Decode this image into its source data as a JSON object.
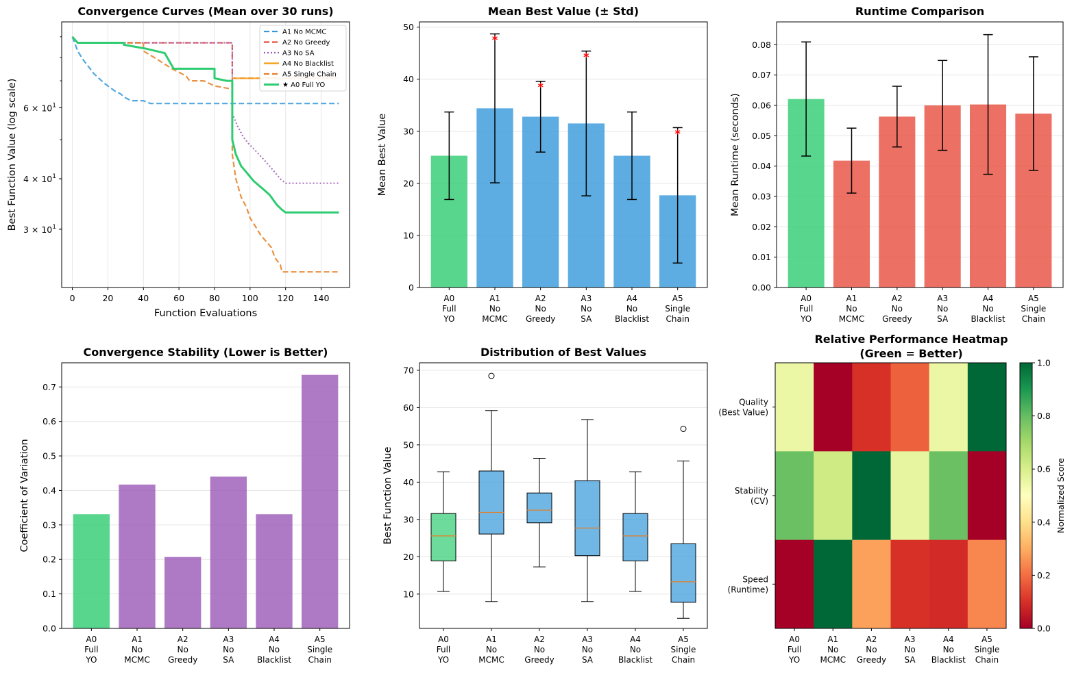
{
  "categories_x": [
    "A0\nFull\nYO",
    "A1\nNo\nMCMC",
    "A2\nNo\nGreedy",
    "A3\nNo\nSA",
    "A4\nNo\nBlacklist",
    "A5\nSingle\nChain"
  ],
  "colors": {
    "green": "#2ecc71",
    "blue": "#3498db",
    "red": "#e74c3c",
    "purple": "#9b59b6",
    "orange": "#f39c12",
    "darkorange": "#e67e22",
    "redline": "#e74c3c"
  },
  "chart_data": [
    {
      "id": "convergence",
      "type": "line",
      "title": "Convergence Curves (Mean over 30 runs)",
      "xlabel": "Function Evaluations",
      "ylabel": "Best Function Value (log scale)",
      "xlim": [
        -6,
        156
      ],
      "ylim_log": [
        21.5,
        98
      ],
      "xticks": [
        0,
        20,
        40,
        60,
        80,
        100,
        120,
        140
      ],
      "yticks": [
        {
          "value": 60,
          "base": "6 × 10",
          "exp": "1"
        },
        {
          "value": 40,
          "base": "4 × 10",
          "exp": "1"
        },
        {
          "value": 30,
          "base": "3 × 10",
          "exp": "1"
        }
      ],
      "legend": "top-right",
      "series": [
        {
          "name": "A1 No MCMC",
          "color": "#3498db",
          "dash": "dashed",
          "points": [
            [
              0,
              90
            ],
            [
              3,
              83
            ],
            [
              6,
              79
            ],
            [
              9,
              76
            ],
            [
              12,
              73
            ],
            [
              15,
              71
            ],
            [
              18,
              69
            ],
            [
              21,
              67.5
            ],
            [
              24,
              66
            ],
            [
              27,
              65
            ],
            [
              30,
              63.5
            ],
            [
              33,
              62.5
            ],
            [
              36,
              62.5
            ],
            [
              40,
              62.5
            ],
            [
              44,
              61.5
            ],
            [
              150,
              61.5
            ]
          ]
        },
        {
          "name": "A2 No Greedy",
          "color": "#e74c3c",
          "dash": "dashed",
          "points": [
            [
              0,
              90
            ],
            [
              3,
              87
            ],
            [
              29,
              87
            ],
            [
              29,
              87
            ],
            [
              90,
              87
            ],
            [
              90,
              71
            ],
            [
              150,
              71
            ]
          ]
        },
        {
          "name": "A3 No SA",
          "color": "#9b59b6",
          "dash": "dotted",
          "points": [
            [
              0,
              90
            ],
            [
              3,
              87
            ],
            [
              90,
              87
            ],
            [
              90,
              58
            ],
            [
              93,
              54
            ],
            [
              96,
              51
            ],
            [
              99,
              49
            ],
            [
              102,
              47.5
            ],
            [
              105,
              46
            ],
            [
              108,
              44.5
            ],
            [
              111,
              43
            ],
            [
              114,
              41.5
            ],
            [
              117,
              40
            ],
            [
              120,
              39
            ],
            [
              150,
              39
            ]
          ]
        },
        {
          "name": "A4 No Blacklist",
          "color": "#f39c12",
          "dash": "solid",
          "points": [
            [
              90,
              71
            ],
            [
              150,
              71
            ]
          ]
        },
        {
          "name": "A5 Single Chain",
          "color": "#e67e22",
          "dash": "dashed",
          "points": [
            [
              0,
              90
            ],
            [
              3,
              87
            ],
            [
              40,
              87
            ],
            [
              40,
              83
            ],
            [
              44,
              81
            ],
            [
              48,
              79
            ],
            [
              52,
              77
            ],
            [
              56,
              75
            ],
            [
              60,
              73.5
            ],
            [
              64,
              72
            ],
            [
              66,
              70
            ],
            [
              74,
              70
            ],
            [
              80,
              68
            ],
            [
              88,
              67
            ],
            [
              90,
              67
            ],
            [
              90,
              46
            ],
            [
              92,
              40
            ],
            [
              95,
              36
            ],
            [
              98,
              34
            ],
            [
              100,
              32
            ],
            [
              103,
              30.5
            ],
            [
              106,
              29
            ],
            [
              109,
              28
            ],
            [
              112,
              27
            ],
            [
              114,
              25.5
            ],
            [
              117,
              24.5
            ],
            [
              118,
              23.5
            ],
            [
              150,
              23.5
            ]
          ]
        },
        {
          "name": "★ A0 Full YO",
          "color": "#2ecc71",
          "dash": "solid-bold",
          "points": [
            [
              0,
              90
            ],
            [
              3,
              87
            ],
            [
              29,
              87
            ],
            [
              29,
              86
            ],
            [
              42,
              84
            ],
            [
              52,
              82
            ],
            [
              57,
              75
            ],
            [
              80,
              75
            ],
            [
              80,
              71
            ],
            [
              87,
              70
            ],
            [
              90,
              70
            ],
            [
              90,
              50
            ],
            [
              92,
              46
            ],
            [
              95,
              43
            ],
            [
              98,
              41.5
            ],
            [
              100,
              40.5
            ],
            [
              102,
              39.5
            ],
            [
              105,
              38.5
            ],
            [
              108,
              37.5
            ],
            [
              111,
              36.5
            ],
            [
              113,
              35.5
            ],
            [
              115,
              34.5
            ],
            [
              118,
              33.5
            ],
            [
              120,
              33
            ],
            [
              150,
              33
            ]
          ]
        }
      ]
    },
    {
      "id": "meanbest",
      "type": "bar",
      "title": "Mean Best Value (± Std)",
      "ylabel": "Mean Best Value",
      "ylim": [
        0,
        51
      ],
      "yticks": [
        0,
        10,
        20,
        30,
        40,
        50
      ],
      "values": [
        25.3,
        34.4,
        32.8,
        31.5,
        25.3,
        17.7
      ],
      "std": [
        8.4,
        14.3,
        6.8,
        13.9,
        8.4,
        13.0
      ],
      "significant": [
        false,
        true,
        true,
        true,
        false,
        true
      ],
      "sig_marker": "*",
      "colors": [
        "#2ecc71",
        "#3498db",
        "#3498db",
        "#3498db",
        "#3498db",
        "#3498db"
      ]
    },
    {
      "id": "runtime",
      "type": "bar",
      "title": "Runtime Comparison",
      "ylabel": "Mean Runtime (seconds)",
      "ylim": [
        0,
        0.0875
      ],
      "yticks": [
        0.0,
        0.01,
        0.02,
        0.03,
        0.04,
        0.05,
        0.06,
        0.07,
        0.08
      ],
      "values": [
        0.0621,
        0.0418,
        0.0563,
        0.06,
        0.0603,
        0.0573
      ],
      "std": [
        0.0188,
        0.0107,
        0.01,
        0.0148,
        0.023,
        0.0187
      ],
      "colors": [
        "#2ecc71",
        "#e74c3c",
        "#e74c3c",
        "#e74c3c",
        "#e74c3c",
        "#e74c3c"
      ]
    },
    {
      "id": "stability",
      "type": "bar",
      "title": "Convergence Stability (Lower is Better)",
      "ylabel": "Coefficient of Variation",
      "ylim": [
        0,
        0.77
      ],
      "yticks": [
        0.0,
        0.1,
        0.2,
        0.3,
        0.4,
        0.5,
        0.6,
        0.7
      ],
      "values": [
        0.331,
        0.417,
        0.207,
        0.44,
        0.331,
        0.735
      ],
      "colors": [
        "#2ecc71",
        "#9b59b6",
        "#9b59b6",
        "#9b59b6",
        "#9b59b6",
        "#9b59b6"
      ]
    },
    {
      "id": "distribution",
      "type": "box",
      "title": "Distribution of Best Values",
      "ylabel": "Best Function Value",
      "ylim": [
        0.8,
        72
      ],
      "yticks": [
        10,
        20,
        30,
        40,
        50,
        60,
        70
      ],
      "boxes": [
        {
          "q1": 18.9,
          "median": 25.6,
          "q3": 31.6,
          "low": 10.7,
          "high": 42.8,
          "outliers": [],
          "color": "#2ecc71"
        },
        {
          "q1": 26.1,
          "median": 31.9,
          "q3": 43.0,
          "low": 8.0,
          "high": 59.2,
          "outliers": [
            68.5
          ],
          "color": "#3498db"
        },
        {
          "q1": 29.1,
          "median": 32.5,
          "q3": 37.1,
          "low": 17.3,
          "high": 46.4,
          "outliers": [],
          "color": "#3498db"
        },
        {
          "q1": 20.3,
          "median": 27.7,
          "q3": 40.4,
          "low": 8.0,
          "high": 56.8,
          "outliers": [],
          "color": "#3498db"
        },
        {
          "q1": 18.9,
          "median": 25.6,
          "q3": 31.6,
          "low": 10.7,
          "high": 42.8,
          "outliers": [],
          "color": "#3498db"
        },
        {
          "q1": 7.8,
          "median": 13.3,
          "q3": 23.5,
          "low": 3.5,
          "high": 45.7,
          "outliers": [
            54.3
          ],
          "color": "#3498db"
        }
      ]
    },
    {
      "id": "heatmap",
      "type": "heatmap",
      "title_lines": [
        "Relative Performance Heatmap",
        "(Green = Better)"
      ],
      "rows": [
        "Quality\n(Best Value)",
        "Stability\n(CV)",
        "Speed\n(Runtime)"
      ],
      "values": [
        [
          0.55,
          0.0,
          0.1,
          0.18,
          0.55,
          1.0
        ],
        [
          0.79,
          0.62,
          1.0,
          0.56,
          0.79,
          0.0
        ],
        [
          0.0,
          1.0,
          0.28,
          0.1,
          0.09,
          0.24
        ]
      ],
      "colorbar_label": "Normalized Score",
      "colorbar_ticks": [
        0.0,
        0.2,
        0.4,
        0.6,
        0.8,
        1.0
      ]
    }
  ]
}
